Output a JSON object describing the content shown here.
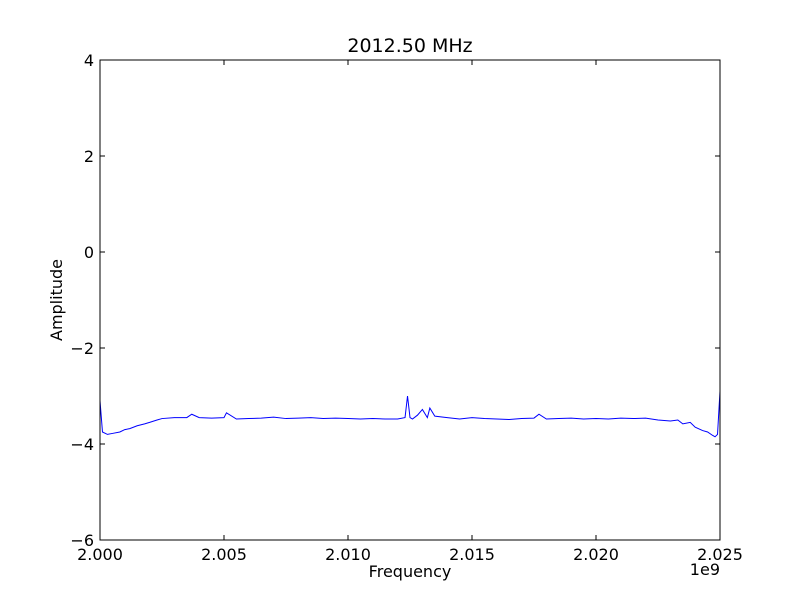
{
  "chart_data": {
    "type": "line",
    "title": "2012.50 MHz",
    "xlabel": "Frequency",
    "ylabel": "Amplitude",
    "x_offset_label": "1e9",
    "xlim": [
      2.0,
      2.025
    ],
    "ylim": [
      -6,
      4
    ],
    "x_ticks": [
      2.0,
      2.005,
      2.01,
      2.015,
      2.02,
      2.025
    ],
    "x_tick_labels": [
      "2.000",
      "2.005",
      "2.010",
      "2.015",
      "2.020",
      "2.025"
    ],
    "y_ticks": [
      -6,
      -4,
      -2,
      0,
      2,
      4
    ],
    "y_tick_labels": [
      "−6",
      "−4",
      "−2",
      "0",
      "2",
      "4"
    ],
    "grid": false,
    "series": [
      {
        "color": "#0000ff",
        "x": [
          2.0,
          2.0001,
          2.0003,
          2.0005,
          2.0008,
          2.001,
          2.0012,
          2.0015,
          2.0018,
          2.002,
          2.0023,
          2.0025,
          2.003,
          2.0035,
          2.0037,
          2.004,
          2.0045,
          2.005,
          2.0051,
          2.0055,
          2.006,
          2.0065,
          2.007,
          2.0075,
          2.008,
          2.0085,
          2.009,
          2.0095,
          2.01,
          2.0105,
          2.011,
          2.0115,
          2.012,
          2.0123,
          2.0124,
          2.0125,
          2.0126,
          2.0128,
          2.013,
          2.0132,
          2.0133,
          2.0135,
          2.014,
          2.0145,
          2.015,
          2.0155,
          2.016,
          2.0165,
          2.017,
          2.0175,
          2.0177,
          2.018,
          2.0185,
          2.019,
          2.0195,
          2.02,
          2.0205,
          2.021,
          2.0215,
          2.022,
          2.0225,
          2.023,
          2.0233,
          2.0235,
          2.0238,
          2.024,
          2.0243,
          2.0245,
          2.0247,
          2.0248,
          2.0249,
          2.025
        ],
        "y": [
          -3.1,
          -3.75,
          -3.8,
          -3.78,
          -3.75,
          -3.7,
          -3.68,
          -3.62,
          -3.58,
          -3.55,
          -3.5,
          -3.47,
          -3.45,
          -3.45,
          -3.38,
          -3.45,
          -3.46,
          -3.45,
          -3.35,
          -3.48,
          -3.47,
          -3.46,
          -3.44,
          -3.47,
          -3.46,
          -3.45,
          -3.47,
          -3.46,
          -3.47,
          -3.48,
          -3.47,
          -3.48,
          -3.48,
          -3.45,
          -3.0,
          -3.45,
          -3.48,
          -3.4,
          -3.28,
          -3.45,
          -3.25,
          -3.42,
          -3.45,
          -3.48,
          -3.45,
          -3.47,
          -3.48,
          -3.49,
          -3.47,
          -3.46,
          -3.38,
          -3.48,
          -3.47,
          -3.46,
          -3.48,
          -3.47,
          -3.48,
          -3.46,
          -3.47,
          -3.46,
          -3.5,
          -3.52,
          -3.5,
          -3.58,
          -3.55,
          -3.65,
          -3.72,
          -3.75,
          -3.82,
          -3.85,
          -3.8,
          -2.9
        ]
      }
    ]
  }
}
